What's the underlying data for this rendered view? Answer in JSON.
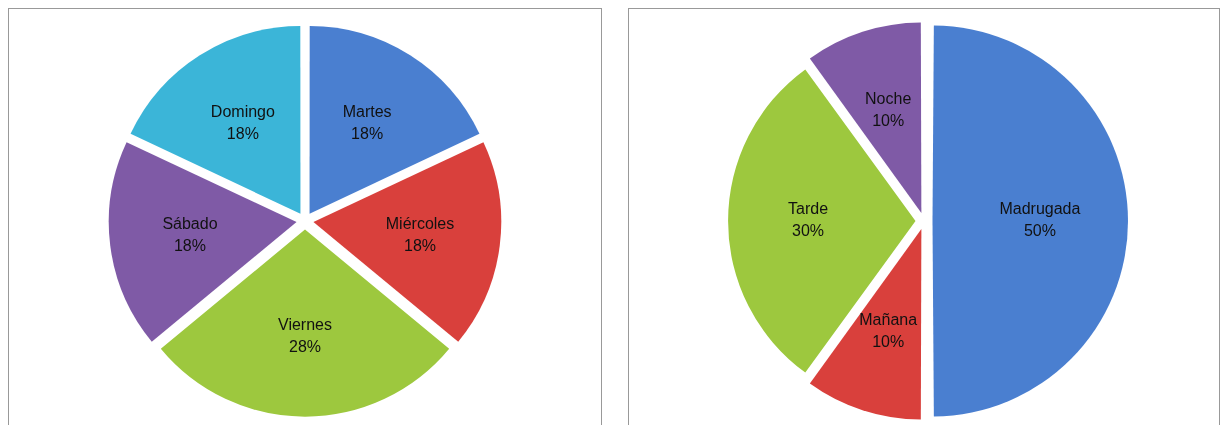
{
  "chart_data": [
    {
      "type": "pie",
      "categories": [
        "Martes",
        "Miércoles",
        "Viernes",
        "Sábado",
        "Domingo"
      ],
      "values": [
        18,
        18,
        28,
        18,
        18
      ],
      "colors": [
        "#4a7fd0",
        "#d9403c",
        "#9dc83e",
        "#7f5aa6",
        "#3bb5d8"
      ],
      "value_labels": [
        "18%",
        "18%",
        "28%",
        "18%",
        "18%"
      ],
      "legend": false
    },
    {
      "type": "pie",
      "categories": [
        "Madrugada",
        "Mañana",
        "Tarde",
        "Noche"
      ],
      "values": [
        50,
        10,
        30,
        10
      ],
      "colors": [
        "#4a7fd0",
        "#d9403c",
        "#9dc83e",
        "#7f5aa6"
      ],
      "value_labels": [
        "50%",
        "10%",
        "30%",
        "10%"
      ],
      "legend": false
    }
  ]
}
